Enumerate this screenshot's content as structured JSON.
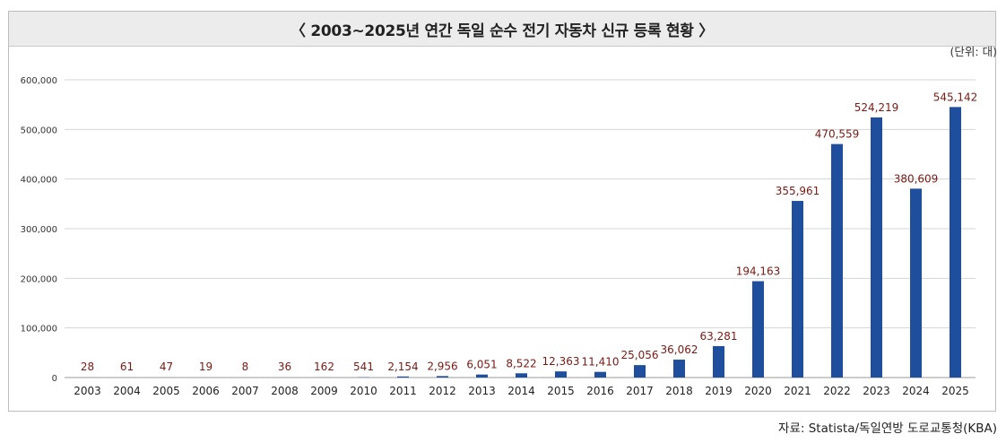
{
  "chart_data": {
    "type": "bar",
    "title": "〈 2003~2025년 연간 독일 순수 전기 자동차 신규 등록 현황 〉",
    "unit_label": "(단위: 대)",
    "source": "자료: Statista/독일연방 도로교통청(KBA)",
    "categories": [
      "2003",
      "2004",
      "2005",
      "2006",
      "2007",
      "2008",
      "2009",
      "2010",
      "2011",
      "2012",
      "2013",
      "2014",
      "2015",
      "2016",
      "2017",
      "2018",
      "2019",
      "2020",
      "2021",
      "2022",
      "2023",
      "2024",
      "2025"
    ],
    "values": [
      28,
      61,
      47,
      19,
      8,
      36,
      162,
      541,
      2154,
      2956,
      6051,
      8522,
      12363,
      11410,
      25056,
      36062,
      63281,
      194163,
      355961,
      470559,
      524219,
      380609,
      545142
    ],
    "data_labels": [
      "28",
      "61",
      "47",
      "19",
      "8",
      "36",
      "162",
      "541",
      "2,154",
      "2,956",
      "6,051",
      "8,522",
      "12,363",
      "11,410",
      "25,056",
      "36,062",
      "63,281",
      "194,163",
      "355,961",
      "470,559",
      "524,219",
      "380,609",
      "545,142"
    ],
    "y_ticks": [
      0,
      100000,
      200000,
      300000,
      400000,
      500000,
      600000
    ],
    "y_tick_labels": [
      "0",
      "100,000",
      "200,000",
      "300,000",
      "400,000",
      "500,000",
      "600,000"
    ],
    "ylim": [
      0,
      600000
    ],
    "grid": true,
    "bar_color": "#1f4e9c",
    "label_color": "#7a1a14",
    "legend": "none"
  }
}
